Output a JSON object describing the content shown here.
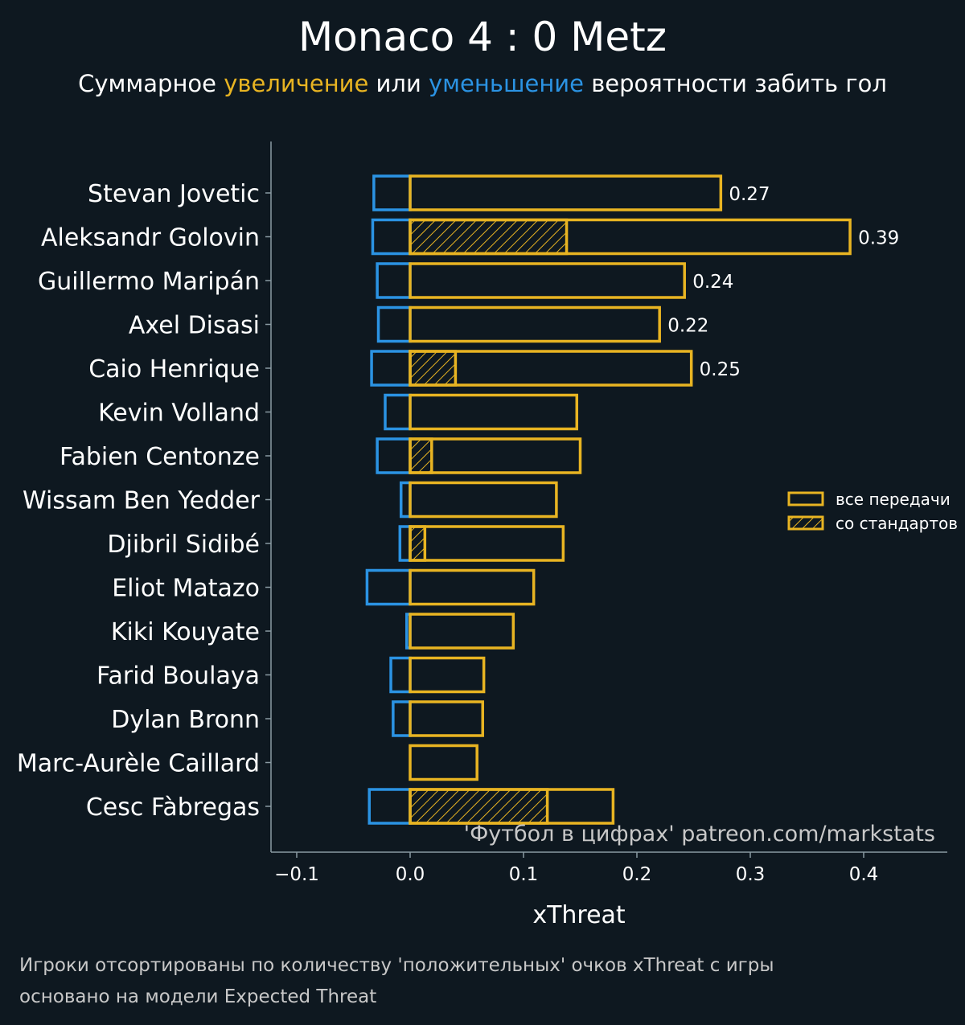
{
  "header": {
    "title": "Monaco 4 : 0 Metz",
    "subtitle_parts": {
      "p1": "Суммарное ",
      "positive": "увеличение",
      "p2": " или ",
      "negative": "уменьшение",
      "p3": " вероятности забить гол"
    }
  },
  "colors": {
    "background": "#0e1820",
    "positive": "#e8b422",
    "negative": "#2b93e3",
    "axis": "#8a9aa2",
    "text": "#ffffff"
  },
  "chart_data": {
    "type": "bar",
    "orientation": "horizontal",
    "xlabel": "xThreat",
    "xlim": [
      -0.12,
      0.475
    ],
    "xticks": [
      -0.1,
      0.0,
      0.1,
      0.2,
      0.3,
      0.4
    ],
    "xtick_labels": [
      "−0.1",
      "0.0",
      "0.1",
      "0.2",
      "0.3",
      "0.4"
    ],
    "categories": [
      "Stevan Jovetic",
      "Aleksandr Golovin",
      "Guillermo Maripán",
      "Axel Disasi",
      "Caio Henrique",
      "Kevin Volland",
      "Fabien Centonze",
      "Wissam Ben Yedder",
      "Djibril Sidibé",
      "Eliot Matazo",
      "Kiki Kouyate",
      "Farid Boulaya",
      "Dylan Bronn",
      "Marc-Aurèle Caillard",
      "Cesc Fàbregas"
    ],
    "series": [
      {
        "name": "positive",
        "values": [
          0.274,
          0.388,
          0.242,
          0.22,
          0.248,
          0.147,
          0.15,
          0.129,
          0.135,
          0.109,
          0.091,
          0.065,
          0.064,
          0.059,
          0.179
        ]
      },
      {
        "name": "negative",
        "values": [
          -0.032,
          -0.033,
          -0.029,
          -0.028,
          -0.034,
          -0.022,
          -0.029,
          -0.008,
          -0.009,
          -0.038,
          -0.003,
          -0.017,
          -0.015,
          0.0,
          -0.036
        ]
      },
      {
        "name": "set_pieces",
        "values": [
          0.0,
          0.138,
          0.0,
          0.0,
          0.04,
          0.0,
          0.019,
          0.0,
          0.013,
          0.0,
          0.0,
          0.0,
          0.0,
          0.0,
          0.121
        ]
      }
    ],
    "value_labels": [
      "0.27",
      "0.39",
      "0.24",
      "0.22",
      "0.25",
      "",
      "",
      "",
      "",
      "",
      "",
      "",
      "",
      "",
      ""
    ],
    "legend": {
      "placement": "right",
      "items": [
        "все передачи",
        "со стандартов"
      ]
    },
    "watermark": "'Футбол в цифрах' patreon.com/markstats"
  },
  "footer": {
    "line1": "Игроки отсортированы по количеству 'положительных' очков xThreat с игры",
    "line2": "основано на модели Expected Threat"
  }
}
